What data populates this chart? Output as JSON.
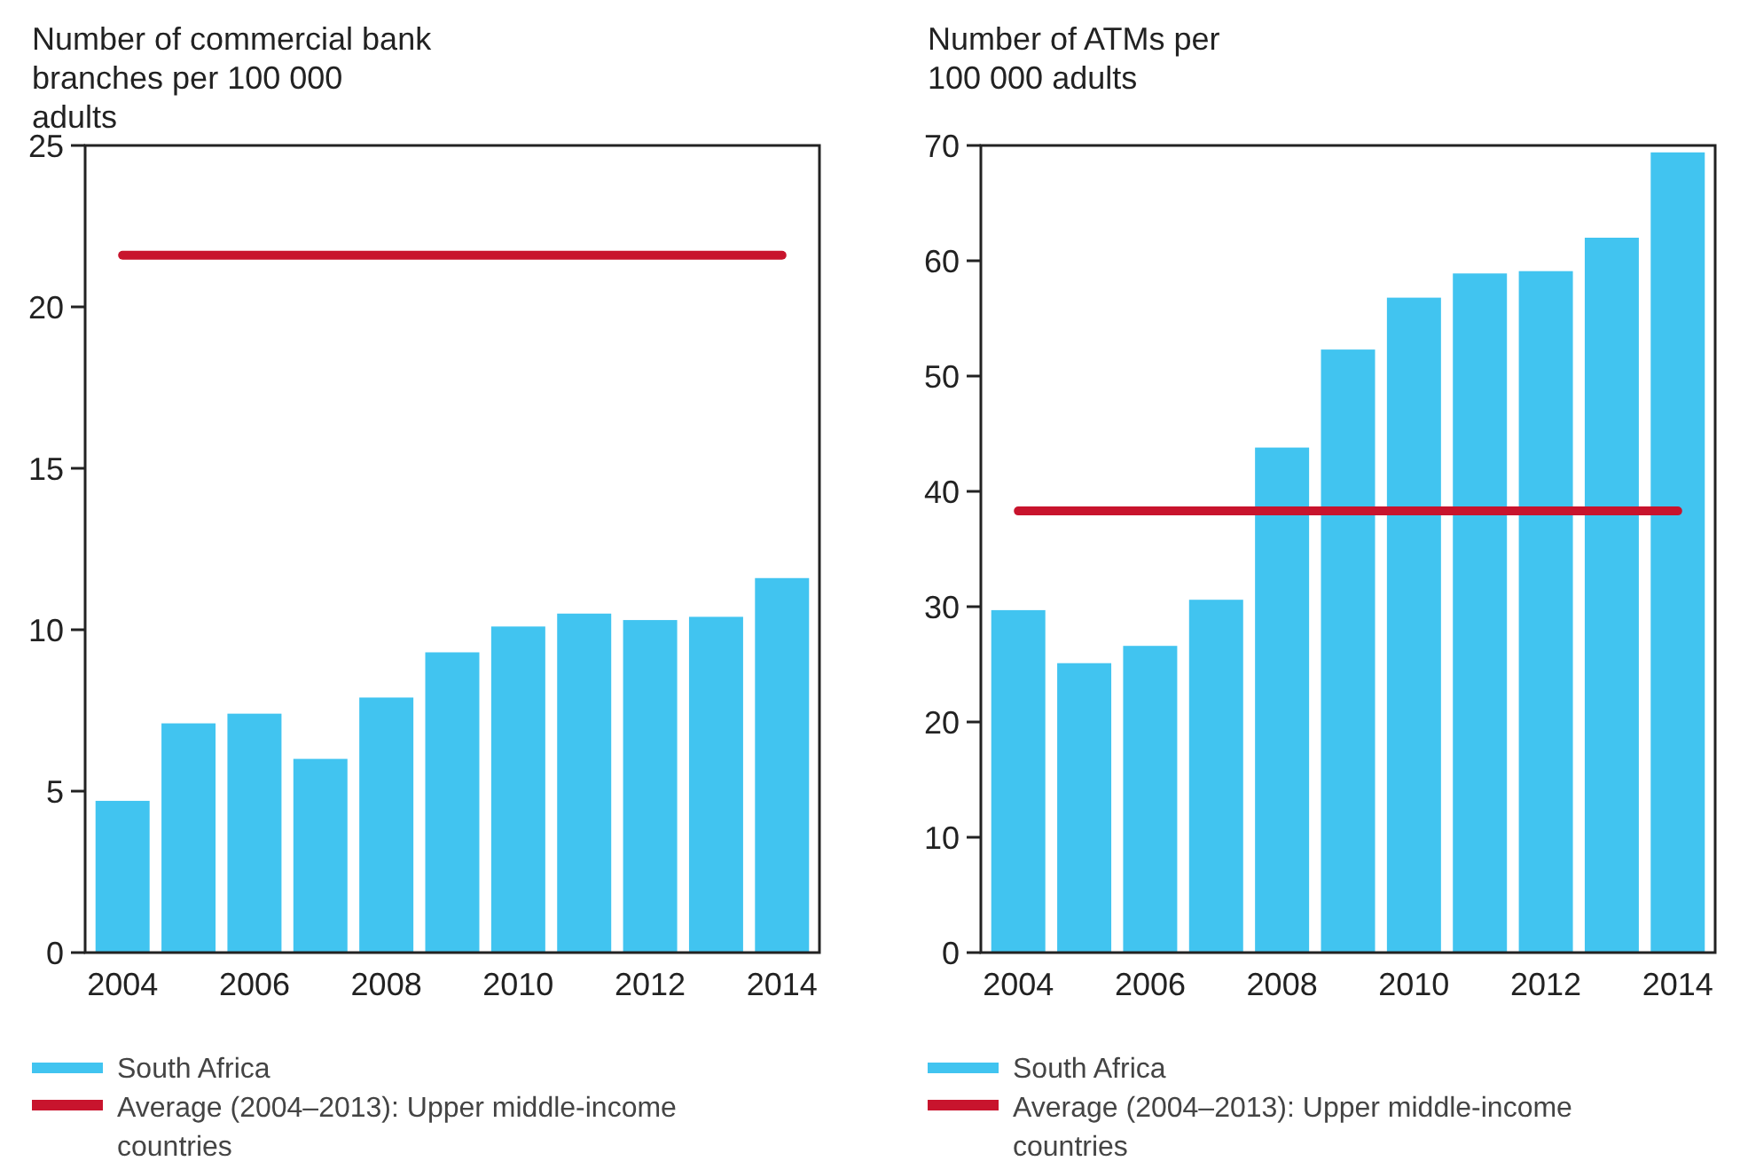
{
  "chart_data": [
    {
      "type": "bar",
      "title": "Number of commercial bank branches per 100 000 adults",
      "categories": [
        "2004",
        null,
        "2006",
        null,
        "2008",
        null,
        "2010",
        null,
        "2012",
        null,
        "2014"
      ],
      "ylim": [
        0,
        25
      ],
      "yticks": [
        0,
        5,
        10,
        15,
        20,
        25
      ],
      "grid": false,
      "legend": "bottom",
      "series": [
        {
          "name": "South Africa",
          "color": "#41c4f0",
          "values": [
            4.7,
            7.1,
            7.4,
            6.0,
            7.9,
            9.3,
            10.1,
            10.5,
            10.3,
            10.4,
            11.6
          ]
        },
        {
          "name": "Average (2004–2013): Upper middle-income countries",
          "type": "line",
          "color": "#c8142d",
          "values": [
            21.6,
            21.6,
            21.6,
            21.6,
            21.6,
            21.6,
            21.6,
            21.6,
            21.6,
            21.6,
            21.6
          ]
        }
      ]
    },
    {
      "type": "bar",
      "title": "Number of ATMs per 100 000 adults",
      "categories": [
        "2004",
        null,
        "2006",
        null,
        "2008",
        null,
        "2010",
        null,
        "2012",
        null,
        "2014"
      ],
      "ylim": [
        0,
        70
      ],
      "yticks": [
        0,
        10,
        20,
        30,
        40,
        50,
        60,
        70
      ],
      "grid": false,
      "legend": "bottom",
      "series": [
        {
          "name": "South Africa",
          "color": "#41c4f0",
          "values": [
            29.7,
            25.1,
            26.6,
            30.6,
            43.8,
            52.3,
            56.8,
            58.9,
            59.1,
            62.0,
            69.4
          ]
        },
        {
          "name": "Average (2004–2013): Upper middle-income countries",
          "type": "line",
          "color": "#c8142d",
          "values": [
            38.3,
            38.3,
            38.3,
            38.3,
            38.3,
            38.3,
            38.3,
            38.3,
            38.3,
            38.3,
            38.3
          ]
        }
      ]
    }
  ]
}
